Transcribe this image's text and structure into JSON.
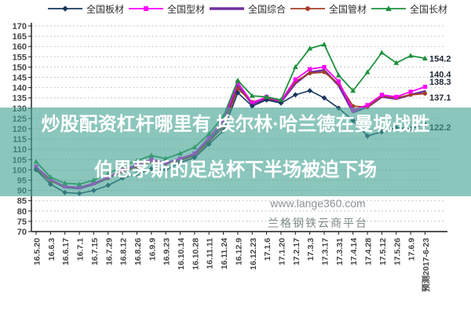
{
  "legend": [
    {
      "key": "plate",
      "label": "全国板材",
      "color": "#17375E",
      "marker": "diamond"
    },
    {
      "key": "section",
      "label": "全国型材",
      "color": "#FF00FF",
      "marker": "square"
    },
    {
      "key": "composite",
      "label": "全国综合",
      "color": "#7030A0",
      "marker": "none"
    },
    {
      "key": "pipe",
      "label": "全国管材",
      "color": "#A33E28",
      "marker": "circle"
    },
    {
      "key": "long",
      "label": "全国长材",
      "color": "#1D913C",
      "marker": "triangle"
    }
  ],
  "overlay": {
    "line1": "炒股配资杠杆哪里有 埃尔林·哈兰德在曼城战胜",
    "line2": "伯恩茅斯的足总杯下半场被迫下场",
    "band_color": "#8BC6BC"
  },
  "watermarks": {
    "site": "www.lange360.com",
    "platform": "兰格钢铁云商平台"
  },
  "chart_data": {
    "type": "line",
    "title": "",
    "xlabel": "",
    "ylabel": "",
    "ylim": [
      70,
      170
    ],
    "ystep": 5,
    "grid": true,
    "legend_position": "top",
    "categories": [
      "16.5.20",
      "16.6.3",
      "16.6.17",
      "16.7.1",
      "16.7.15",
      "16.7.29",
      "16.8.12",
      "16.8.26",
      "16.9.9",
      "16.9.23",
      "16.10.14",
      "16.10.28",
      "16.11.11",
      "16.11.24",
      "16.12.9",
      "16.12.23",
      "17.1.6",
      "17.1.20",
      "17.2.17",
      "17.3.3",
      "17.3.17",
      "17.3.31",
      "17.4.14",
      "17.4.28",
      "17.5.12",
      "17.5.26",
      "17.6.9",
      "预测2017-6-23"
    ],
    "series": [
      {
        "key": "composite",
        "name": "全国综合",
        "color": "#7030A0",
        "marker": "none",
        "width": 2.6,
        "end_label": "138.3",
        "end_label_dy": -8,
        "values": [
          101,
          95,
          91.5,
          91,
          93,
          96,
          99.5,
          102,
          104.5,
          103,
          105,
          107.5,
          114.5,
          122.5,
          141,
          132,
          134.5,
          133,
          142,
          147.5,
          148.5,
          141,
          128,
          130.5,
          135.5,
          134.5,
          136.5,
          138.3
        ]
      },
      {
        "key": "pipe",
        "name": "全国管材",
        "color": "#A33E28",
        "marker": "circle",
        "width": 1.8,
        "end_label": "137.1",
        "end_label_dy": 9,
        "values": [
          100.5,
          94.5,
          92,
          91.5,
          93.5,
          96,
          99,
          101.5,
          104,
          103,
          104.5,
          107,
          113.5,
          121,
          139.5,
          133,
          135,
          133.5,
          143,
          147,
          147.5,
          142,
          131,
          130.5,
          136,
          135,
          136.5,
          137.1
        ]
      },
      {
        "key": "section",
        "name": "全国型材",
        "color": "#FF00FF",
        "marker": "square",
        "width": 1.8,
        "end_label": "140.4",
        "end_label_dy": -12,
        "values": [
          101.5,
          95.5,
          92,
          91.5,
          93.5,
          96.5,
          100,
          102.5,
          105,
          103.5,
          105.5,
          108,
          116,
          124,
          142.5,
          132.5,
          135.5,
          133.5,
          144,
          149,
          150,
          143,
          129,
          131.5,
          136.5,
          135.5,
          138,
          140.4
        ]
      },
      {
        "key": "plate",
        "name": "全国板材",
        "color": "#17375E",
        "marker": "diamond",
        "width": 1.6,
        "end_label": "122.2",
        "end_label_dy": 8,
        "values": [
          100,
          93,
          89,
          88.5,
          90,
          92.5,
          96,
          98,
          100.5,
          100,
          103.5,
          106,
          112.5,
          119,
          137.5,
          131,
          134,
          132.5,
          136.5,
          138.5,
          135,
          130,
          124,
          116.5,
          118.5,
          120.5,
          120,
          122.2
        ]
      },
      {
        "key": "long",
        "name": "全国长材",
        "color": "#1D913C",
        "marker": "triangle",
        "width": 1.8,
        "end_label": "154.2",
        "end_label_dy": 4,
        "values": [
          104,
          96.5,
          93.5,
          93,
          95,
          98,
          102,
          104.5,
          107,
          105.5,
          108,
          111,
          117.5,
          126,
          143.5,
          136,
          135.5,
          134,
          150,
          159,
          161,
          146,
          138.5,
          147.5,
          157,
          152,
          155.5,
          154.2
        ]
      }
    ]
  }
}
